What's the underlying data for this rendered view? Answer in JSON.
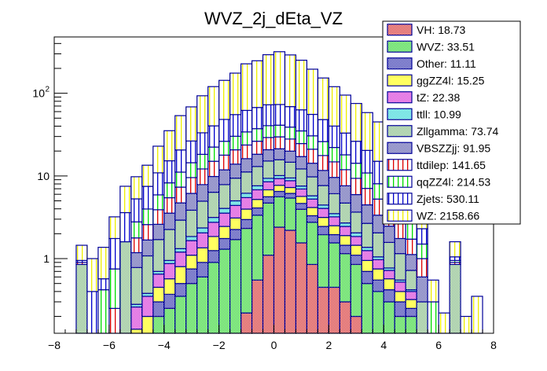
{
  "chart_data": {
    "type": "bar",
    "subtype": "stacked-histogram",
    "title": "WVZ_2j_dEta_VZ",
    "xlabel": "",
    "ylabel": "",
    "xlim": [
      -8,
      8
    ],
    "ylim": [
      0.125,
      480
    ],
    "yscale": "log",
    "bin_width": 0.4,
    "x_ticks": [
      "-8",
      "-6",
      "-4",
      "-2",
      "0",
      "2",
      "4",
      "6",
      "8"
    ],
    "x_tick_values": [
      -8,
      -6,
      -4,
      -2,
      0,
      2,
      4,
      6,
      8
    ],
    "y_ticks": [
      {
        "value": 1,
        "label": "1",
        "sup": ""
      },
      {
        "value": 10,
        "label": "10",
        "sup": ""
      },
      {
        "value": 100,
        "label": "10",
        "sup": "2"
      }
    ],
    "legend_position": "top-right",
    "bin_edges_low": [
      -7.2,
      -6.8,
      -6.4,
      -6.0,
      -5.6,
      -5.2,
      -4.8,
      -4.4,
      -4.0,
      -3.6,
      -3.2,
      -2.8,
      -2.4,
      -2.0,
      -1.6,
      -1.2,
      -0.8,
      -0.4,
      0.0,
      0.4,
      0.8,
      1.2,
      1.6,
      2.0,
      2.4,
      2.8,
      3.2,
      3.6,
      4.0,
      4.4,
      4.8,
      5.2,
      5.6,
      6.0,
      6.4,
      6.8,
      7.2
    ],
    "series": [
      {
        "name": "VH",
        "legend": "VH: 18.73",
        "color": "#e8a0a0",
        "hatch": "#cc0000",
        "pattern": "check",
        "values": [
          0,
          0,
          0,
          0,
          0,
          0,
          0,
          0,
          0,
          0,
          0,
          0,
          0,
          0,
          0,
          0.22,
          0.55,
          1.1,
          2.4,
          2.2,
          1.55,
          0.85,
          0.45,
          0.45,
          0.3,
          0.2,
          0,
          0,
          0,
          0,
          0,
          0,
          0,
          0,
          0,
          0,
          0
        ]
      },
      {
        "name": "WVZ",
        "legend": "WVZ: 33.51",
        "color": "#80e080",
        "hatch": "#00cc00",
        "pattern": "check",
        "values": [
          0,
          0,
          0,
          0,
          0,
          0,
          0,
          0.2,
          0.25,
          0.35,
          0.5,
          0.6,
          0.9,
          1.3,
          1.7,
          2.1,
          2.8,
          3.6,
          3.2,
          3.2,
          2.4,
          1.9,
          1.5,
          1.1,
          0.85,
          0.65,
          0.5,
          0.4,
          0.3,
          0.2,
          0.2,
          0,
          0,
          0,
          0,
          0,
          0
        ]
      },
      {
        "name": "Other",
        "legend": "Other: 11.11",
        "color": "#4040c0",
        "hatch": "#000099",
        "pattern": "check",
        "values": [
          0,
          0,
          0,
          0,
          0,
          0.06,
          0.08,
          0.1,
          0.12,
          0.15,
          0.25,
          0.3,
          0.35,
          0.45,
          0.55,
          0.65,
          0.75,
          0.9,
          0.9,
          0.75,
          0.7,
          0.55,
          0.5,
          0.4,
          0.3,
          0.25,
          0.2,
          0.15,
          0.12,
          0.1,
          0.05,
          0,
          0,
          0,
          0,
          0,
          0
        ]
      },
      {
        "name": "ggZZ4l",
        "legend": "ggZZ4l: 15.25",
        "color": "#ffff60",
        "hatch": "#cccc00",
        "pattern": "solid",
        "values": [
          0,
          0,
          0,
          0,
          0,
          0.08,
          0.12,
          0.15,
          0.2,
          0.3,
          0.35,
          0.45,
          0.6,
          0.7,
          0.85,
          1.0,
          1.1,
          1.2,
          1.2,
          1.1,
          1.0,
          0.85,
          0.7,
          0.55,
          0.45,
          0.35,
          0.25,
          0.2,
          0.15,
          0.1,
          0.07,
          0,
          0,
          0,
          0,
          0,
          0
        ]
      },
      {
        "name": "tZ",
        "legend": "tZ: 22.38",
        "color": "#d070d0",
        "hatch": "#cc00cc",
        "pattern": "check",
        "values": [
          0,
          0,
          0,
          0,
          0,
          0.12,
          0.15,
          0.2,
          0.3,
          0.4,
          0.55,
          0.7,
          0.9,
          1.1,
          1.3,
          1.5,
          1.6,
          1.7,
          1.6,
          1.5,
          1.3,
          1.1,
          0.9,
          0.7,
          0.55,
          0.4,
          0.3,
          0.22,
          0.15,
          0.12,
          0.08,
          0,
          0,
          0,
          0,
          0,
          0
        ]
      },
      {
        "name": "ttll",
        "legend": "ttll: 10.99",
        "color": "#70e8e8",
        "hatch": "#00cccc",
        "pattern": "check",
        "values": [
          0,
          0,
          0,
          0,
          0,
          0.02,
          0.03,
          0.05,
          0.08,
          0.12,
          0.2,
          0.3,
          0.4,
          0.5,
          0.6,
          0.7,
          0.8,
          0.85,
          0.8,
          0.7,
          0.6,
          0.5,
          0.4,
          0.3,
          0.25,
          0.2,
          0.12,
          0.08,
          0.05,
          0.03,
          0.02,
          0,
          0,
          0,
          0,
          0,
          0
        ]
      },
      {
        "name": "Zllgamma",
        "legend": "Zllgamma: 73.74",
        "color": "#a8dca8",
        "hatch": "#66aa66",
        "pattern": "check",
        "values": [
          0.85,
          0,
          0,
          0,
          1.6,
          0.5,
          0.7,
          1.0,
          1.3,
          1.6,
          2.0,
          2.6,
          3.2,
          3.8,
          4.4,
          5.0,
          5.4,
          5.8,
          5.6,
          5.2,
          4.6,
          4.0,
          3.2,
          2.6,
          2.0,
          1.6,
          1.3,
          1.0,
          0.8,
          0.6,
          0.3,
          0.3,
          0,
          0,
          0.85,
          0,
          0
        ]
      },
      {
        "name": "VBSZZjj",
        "legend": "VBSZZjj: 91.95",
        "color": "#9898d0",
        "hatch": "#333399",
        "pattern": "check",
        "values": [
          0,
          0,
          0,
          0,
          0,
          0.4,
          0.6,
          0.9,
          1.3,
          1.8,
          2.3,
          2.9,
          3.5,
          4.0,
          4.5,
          5.0,
          5.3,
          5.6,
          5.6,
          5.3,
          5.0,
          4.5,
          4.0,
          3.5,
          2.9,
          2.3,
          1.8,
          1.3,
          0.9,
          0.6,
          0.4,
          0.3,
          0,
          0,
          0,
          0,
          0
        ]
      },
      {
        "name": "ttdilep",
        "legend": "ttdilep: 141.65",
        "color": "#ffffff",
        "hatch": "#dd0000",
        "pattern": "vlines",
        "values": [
          0.05,
          0,
          0.12,
          0.25,
          0,
          0.6,
          0.9,
          1.3,
          1.9,
          2.6,
          3.4,
          4.3,
          5.2,
          6.0,
          6.8,
          7.5,
          8.0,
          8.4,
          8.4,
          8.0,
          7.5,
          6.8,
          6.0,
          5.2,
          4.3,
          3.4,
          2.6,
          1.9,
          1.3,
          0.9,
          0.6,
          0.4,
          0,
          0,
          0.05,
          0,
          0
        ]
      },
      {
        "name": "qqZZ4l",
        "legend": "qqZZ4l: 214.53",
        "color": "#ffffff",
        "hatch": "#00dd00",
        "pattern": "vlines",
        "values": [
          0,
          0,
          0.3,
          0.5,
          0,
          1.0,
          1.4,
          2.0,
          2.8,
          3.8,
          4.9,
          6.1,
          7.3,
          8.4,
          9.5,
          10.4,
          11.0,
          11.4,
          11.4,
          11.0,
          10.4,
          9.5,
          8.4,
          7.3,
          6.1,
          4.9,
          3.8,
          2.8,
          2.0,
          1.4,
          1.0,
          0.5,
          0.3,
          0,
          0.05,
          0,
          0
        ]
      },
      {
        "name": "Zjets",
        "legend": "Zjets: 530.11",
        "color": "#ffffff",
        "hatch": "#0000cc",
        "pattern": "vlines",
        "values": [
          0.05,
          0.4,
          0.15,
          1.0,
          2.0,
          2.5,
          3.5,
          5.0,
          7.0,
          9.5,
          12,
          15,
          18,
          22,
          25,
          28,
          30,
          32,
          32,
          30,
          28,
          25,
          22,
          18,
          15,
          12,
          9.5,
          7.0,
          5.0,
          3.5,
          0.9,
          0.8,
          0,
          0,
          0.1,
          0,
          0
        ]
      },
      {
        "name": "WZ",
        "legend": "WZ: 2158.66",
        "color": "#ffffff",
        "hatch": "#eeee00",
        "pattern": "vlines",
        "values": [
          0.5,
          0.6,
          0.8,
          1.45,
          3.9,
          4.5,
          6.0,
          12,
          20,
          33,
          42,
          60,
          80,
          95,
          120,
          165,
          180,
          220,
          245,
          222,
          188,
          140,
          105,
          80,
          62,
          49,
          38,
          30,
          25,
          23,
          1.4,
          0.35,
          0.25,
          0.22,
          0.55,
          0.2,
          0.35
        ]
      }
    ]
  }
}
